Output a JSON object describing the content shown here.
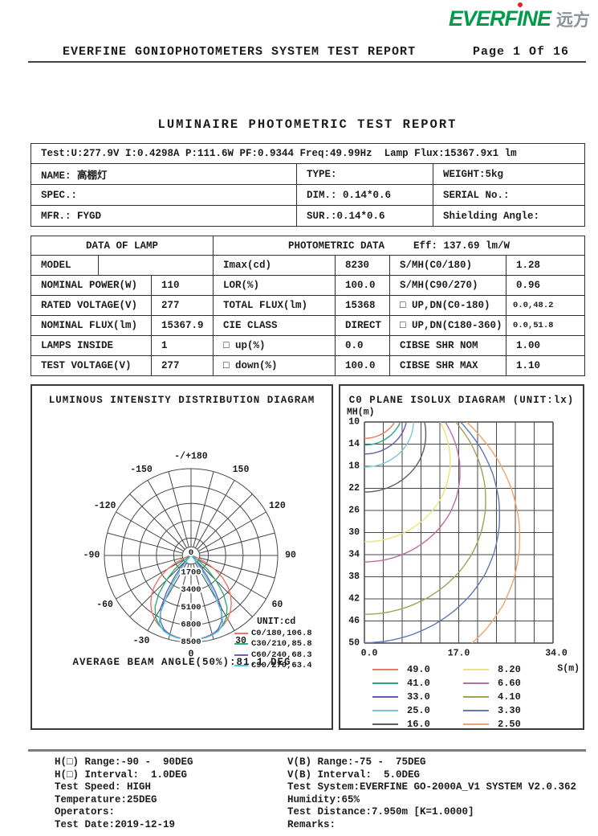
{
  "theme": {
    "logo_green": "#009B48",
    "logo_gray": "#8C949A",
    "logo_dot": "#E02222",
    "grid": "#474747",
    "border": "#303030"
  },
  "logo": {
    "part1": "EVERF",
    "part2": "I",
    "part3": "NE",
    "cjk": "远方"
  },
  "header": {
    "title": "EVERFINE GONIOPHOTOMETERS SYSTEM TEST REPORT",
    "page": "Page 1 Of 16"
  },
  "report_title": "LUMINAIRE PHOTOMETRIC TEST REPORT",
  "info_table": {
    "test_line": "Test:U:277.9V I:0.4298A P:111.6W PF:0.9344 Freq:49.99Hz  Lamp Flux:15367.9x1 lm",
    "rows": [
      [
        "NAME: 高棚灯",
        "TYPE:",
        "WEIGHT:5kg"
      ],
      [
        "SPEC.:",
        "DIM.: 0.14*0.6",
        "SERIAL No.:"
      ],
      [
        "MFR.: FYGD",
        "SUR.:0.14*0.6",
        "Shielding Angle:"
      ]
    ]
  },
  "data_table": {
    "left_header": "DATA OF LAMP",
    "right_header": "PHOTOMETRIC DATA",
    "eff": "Eff: 137.69 lm/W",
    "rows": [
      {
        "l": "MODEL",
        "lv": "",
        "m": "Imax(cd)",
        "mv": "8230",
        "r": "S/MH(C0/180)",
        "rv": "1.28"
      },
      {
        "l": "NOMINAL POWER(W)",
        "lv": "110",
        "m": "LOR(%)",
        "mv": "100.0",
        "r": "S/MH(C90/270)",
        "rv": "0.96"
      },
      {
        "l": "RATED VOLTAGE(V)",
        "lv": "277",
        "m": "TOTAL FLUX(lm)",
        "mv": "15368",
        "r": "□ UP,DN(C0-180)",
        "rv": "0.0,48.2"
      },
      {
        "l": "NOMINAL FLUX(lm)",
        "lv": "15367.9",
        "m": "CIE CLASS",
        "mv": "DIRECT",
        "r": "□ UP,DN(C180-360)",
        "rv": "0.0,51.8"
      },
      {
        "l": "LAMPS INSIDE",
        "lv": "1",
        "m": "□ up(%)",
        "mv": "0.0",
        "r": "CIBSE SHR NOM",
        "rv": "1.00"
      },
      {
        "l": "TEST VOLTAGE(V)",
        "lv": "277",
        "m": "□ down(%)",
        "mv": "100.0",
        "r": "CIBSE SHR MAX",
        "rv": "1.10"
      }
    ]
  },
  "chart_data": [
    {
      "type": "line",
      "variant": "polar-intensity",
      "title": "LUMINOUS INTENSITY DISTRIBUTION DIAGRAM",
      "unit_label": "UNIT:cd",
      "caption": "AVERAGE BEAM ANGLE(50%):81.1 DEG",
      "r_max": 8500,
      "rings": [
        1700,
        3400,
        5100,
        6800,
        8500
      ],
      "center_label": "0",
      "spoke_step_deg": 15,
      "grid": true,
      "legend_position": "right-bottom",
      "angle_labels": [
        {
          "angle": 180,
          "label": "-/+180"
        },
        {
          "angle": 150,
          "label": "150"
        },
        {
          "angle": -150,
          "label": "-150"
        },
        {
          "angle": 120,
          "label": "120"
        },
        {
          "angle": -120,
          "label": "-120"
        },
        {
          "angle": 90,
          "label": "90"
        },
        {
          "angle": -90,
          "label": "-90"
        },
        {
          "angle": 60,
          "label": "60"
        },
        {
          "angle": -60,
          "label": "-60"
        },
        {
          "angle": 30,
          "label": "30"
        },
        {
          "angle": -30,
          "label": "-30"
        },
        {
          "angle": 0,
          "label": "0"
        }
      ],
      "series": [
        {
          "name": "C0/180,106.8",
          "color": "#EE7365",
          "points": [
            [
              0,
              8230
            ],
            [
              5,
              8205
            ],
            [
              10,
              8120
            ],
            [
              15,
              7980
            ],
            [
              20,
              7780
            ],
            [
              25,
              7520
            ],
            [
              30,
              7180
            ],
            [
              35,
              6720
            ],
            [
              40,
              6150
            ],
            [
              45,
              5480
            ],
            [
              50,
              4680
            ],
            [
              55,
              3750
            ],
            [
              60,
              2650
            ],
            [
              65,
              1550
            ],
            [
              70,
              720
            ],
            [
              75,
              240
            ],
            [
              80,
              60
            ],
            [
              85,
              10
            ],
            [
              90,
              0
            ]
          ]
        },
        {
          "name": "C30/210,85.8",
          "color": "#30AE7C",
          "points": [
            [
              0,
              8230
            ],
            [
              5,
              8210
            ],
            [
              10,
              8140
            ],
            [
              15,
              8010
            ],
            [
              20,
              7800
            ],
            [
              25,
              7480
            ],
            [
              30,
              6950
            ],
            [
              35,
              6150
            ],
            [
              40,
              4950
            ],
            [
              45,
              3450
            ],
            [
              50,
              2050
            ],
            [
              55,
              1020
            ],
            [
              60,
              420
            ],
            [
              65,
              140
            ],
            [
              70,
              35
            ],
            [
              75,
              0
            ]
          ]
        },
        {
          "name": "C60/240,68.3",
          "color": "#6A62B4",
          "points": [
            [
              0,
              8230
            ],
            [
              5,
              8218
            ],
            [
              10,
              8160
            ],
            [
              15,
              8020
            ],
            [
              20,
              7720
            ],
            [
              25,
              7120
            ],
            [
              30,
              5950
            ],
            [
              34,
              4250
            ],
            [
              38,
              2500
            ],
            [
              42,
              1080
            ],
            [
              46,
              380
            ],
            [
              50,
              110
            ],
            [
              55,
              0
            ]
          ]
        },
        {
          "name": "C90/270,63.4",
          "color": "#4AC4E0",
          "points": [
            [
              0,
              8230
            ],
            [
              5,
              8222
            ],
            [
              10,
              8180
            ],
            [
              15,
              8070
            ],
            [
              20,
              7870
            ],
            [
              25,
              7380
            ],
            [
              28,
              6400
            ],
            [
              31,
              4600
            ],
            [
              34,
              2900
            ],
            [
              37,
              1450
            ],
            [
              41,
              480
            ],
            [
              45,
              130
            ],
            [
              50,
              0
            ]
          ]
        }
      ]
    },
    {
      "type": "line",
      "variant": "isolux-contours",
      "title": "C0 PLANE ISOLUX DIAGRAM (UNIT:lx)",
      "xlabel": "S(m)",
      "ylabel": "MH(m)",
      "x_ticks": [
        "0.0",
        "17.0",
        "34.0"
      ],
      "x_range": [
        0,
        34
      ],
      "y_ticks": [
        10,
        14,
        18,
        22,
        26,
        30,
        34,
        38,
        42,
        46,
        50
      ],
      "y_range": [
        10,
        50
      ],
      "grid": {
        "cols": 10,
        "rows": 10
      },
      "source_plane": "C0",
      "levels": [
        {
          "value": "49.0",
          "color": "#E8795C"
        },
        {
          "value": "41.0",
          "color": "#2BA87C"
        },
        {
          "value": "33.0",
          "color": "#5F5CAA"
        },
        {
          "value": "25.0",
          "color": "#79C9D2"
        },
        {
          "value": "16.0",
          "color": "#5C5C64"
        },
        {
          "value": "8.20",
          "color": "#E9E47A"
        },
        {
          "value": "6.60",
          "color": "#BB6BA8"
        },
        {
          "value": "4.10",
          "color": "#A2A254"
        },
        {
          "value": "3.30",
          "color": "#5E76BB"
        },
        {
          "value": "2.50",
          "color": "#EDA468"
        }
      ]
    }
  ],
  "footer": {
    "left": [
      "H(□) Range:-90 -  90DEG",
      "H(□) Interval:  1.0DEG",
      "Test Speed: HIGH",
      "Temperature:25DEG",
      "Operators:",
      "Test Date:2019-12-19"
    ],
    "right": [
      "V(B) Range:-75 -  75DEG",
      "V(B) Interval:  5.0DEG",
      "Test System:EVERFINE GO-2000A_V1 SYSTEM V2.0.362",
      "Humidity:65%",
      "Test Distance:7.950m [K=1.0000]",
      "Remarks:"
    ]
  }
}
